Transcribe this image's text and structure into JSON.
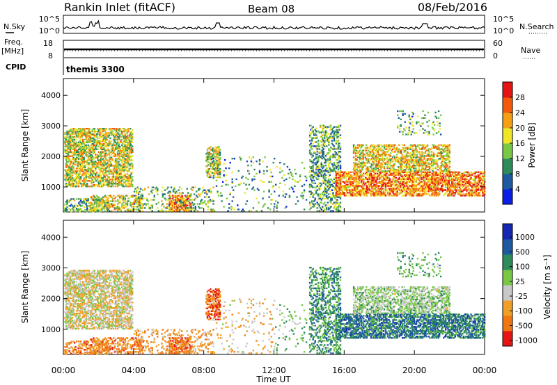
{
  "header": {
    "station": "Rankin Inlet (fitACF)",
    "beam": "Beam 08",
    "date": "08/Feb/2016"
  },
  "summary": {
    "nsky_label": "N.Sky",
    "nsky_ticks": [
      "10^5",
      "10^0"
    ],
    "nsearch_label": "N.Search",
    "nsearch_ticks": [
      "10^5",
      "10^0"
    ],
    "freq_label": "Freq.",
    "freq_unit": "[MHz]",
    "freq_ticks": [
      "18",
      "8"
    ],
    "nave_label": "Nave",
    "nave_ticks": [
      "60",
      "0"
    ],
    "cpid_label": "CPID",
    "cpid_value": "themis 3300"
  },
  "chart_data": [
    {
      "type": "heatmap",
      "name": "power",
      "ylabel": "Slant Range [km]",
      "xlabel": "Time UT",
      "xticks": [
        "00:00",
        "04:00",
        "08:00",
        "12:00",
        "16:00",
        "20:00",
        "00:00"
      ],
      "xlim_hours": [
        0,
        24
      ],
      "yticks": [
        "1000",
        "2000",
        "3000",
        "4000"
      ],
      "ylim": [
        180,
        4550
      ],
      "colorbar_label": "Power [dB]",
      "colorbar_ticks": [
        "4",
        "8",
        "12",
        "16",
        "20",
        "24",
        "28"
      ],
      "colorbar_range": [
        0,
        32
      ],
      "colormap": [
        "#0a1ee6",
        "#1e5aa0",
        "#2d8c5a",
        "#78c846",
        "#f0e628",
        "#f5a014",
        "#f55a0a",
        "#e61414"
      ]
    },
    {
      "type": "heatmap",
      "name": "velocity",
      "ylabel": "Slant Range [km]",
      "xlabel": "Time UT",
      "xticks": [
        "00:00",
        "04:00",
        "08:00",
        "12:00",
        "16:00",
        "20:00",
        "00:00"
      ],
      "xlim_hours": [
        0,
        24
      ],
      "yticks": [
        "1000",
        "2000",
        "3000",
        "4000"
      ],
      "ylim": [
        180,
        4550
      ],
      "colorbar_label": "Velocity [m s⁻¹]",
      "colorbar_ticks": [
        "1000",
        "500",
        "100",
        "25",
        "-25",
        "-100",
        "-500",
        "-1000"
      ],
      "colormap": [
        "#1428b4",
        "#1e5aa0",
        "#2d8c5a",
        "#78c846",
        "#c8c8c8",
        "#f0a028",
        "#f07814",
        "#e61414"
      ]
    }
  ],
  "scatter_regions": [
    {
      "h0": 0.05,
      "h1": 3.9,
      "r0": 1000,
      "r1": 2900,
      "density": 0.55,
      "p": 0.55,
      "v": -0.2
    },
    {
      "h0": 0.05,
      "h1": 2.5,
      "r0": 180,
      "r1": 600,
      "density": 0.35,
      "p": 0.35,
      "v": -0.6
    },
    {
      "h0": 1.5,
      "h1": 4.5,
      "r0": 200,
      "r1": 700,
      "density": 0.4,
      "p": 0.55,
      "v": -0.6
    },
    {
      "h0": 6.0,
      "h1": 7.2,
      "r0": 200,
      "r1": 700,
      "density": 0.6,
      "p": 0.8,
      "v": -0.7
    },
    {
      "h0": 4.0,
      "h1": 8.5,
      "r0": 200,
      "r1": 1000,
      "density": 0.18,
      "p": 0.4,
      "v": -0.5
    },
    {
      "h0": 8.1,
      "h1": 8.9,
      "r0": 1300,
      "r1": 2300,
      "density": 0.55,
      "p": 0.5,
      "v": -0.8
    },
    {
      "h0": 8.5,
      "h1": 12,
      "r0": 200,
      "r1": 2000,
      "density": 0.05,
      "p": 0.3,
      "v": -0.3
    },
    {
      "h0": 14.0,
      "h1": 15.8,
      "r0": 200,
      "r1": 3000,
      "density": 0.35,
      "p": 0.35,
      "v": 0.4
    },
    {
      "h0": 15.5,
      "h1": 24,
      "r0": 700,
      "r1": 1500,
      "density": 0.6,
      "p": 0.78,
      "v": 0.55
    },
    {
      "h0": 16.5,
      "h1": 22,
      "r0": 1500,
      "r1": 2400,
      "density": 0.45,
      "p": 0.6,
      "v": 0.05
    },
    {
      "h0": 19.0,
      "h1": 21.5,
      "r0": 2700,
      "r1": 3500,
      "density": 0.12,
      "p": 0.35,
      "v": 0.3
    },
    {
      "h0": 12,
      "h1": 14,
      "r0": 200,
      "r1": 1800,
      "density": 0.05,
      "p": 0.3,
      "v": 0.2
    }
  ]
}
